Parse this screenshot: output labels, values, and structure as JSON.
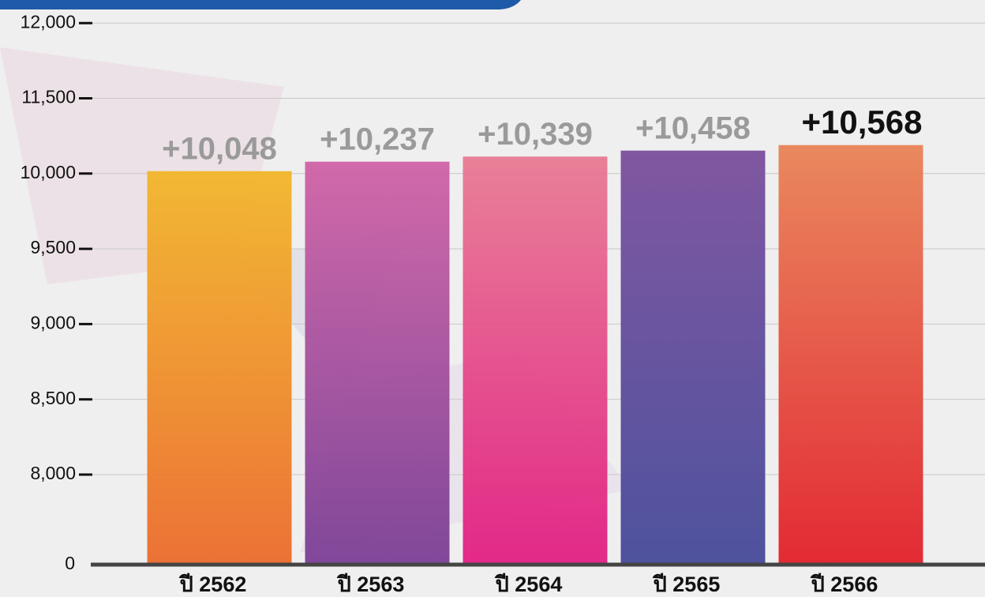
{
  "chart_data": {
    "type": "bar",
    "categories": [
      "ปี 2562",
      "ปี 2563",
      "ปี 2564",
      "ปี 2565",
      "ปี 2566"
    ],
    "values": [
      10048,
      10237,
      10339,
      10458,
      10568
    ],
    "value_labels": [
      "+10,048",
      "+10,237",
      "+10,339",
      "+10,458",
      "+10,568"
    ],
    "colors": [
      [
        "#f2b62a",
        "#ec6b2c"
      ],
      [
        "#d062a6",
        "#7a3f95"
      ],
      [
        "#e87a93",
        "#e21e82"
      ],
      [
        "#7a4f9c",
        "#464a9a"
      ],
      [
        "#e98357",
        "#e2202a"
      ]
    ],
    "ylim": [
      0,
      12000
    ],
    "yticks": [
      0,
      {
        "value": 8000,
        "label": "8,000"
      },
      {
        "value": 8500,
        "label": "8,500"
      },
      {
        "value": 9000,
        "label": "9,000"
      },
      {
        "value": 9500,
        "label": "9,500"
      },
      {
        "value": 10000,
        "label": "10,000"
      },
      {
        "value": 11500,
        "label": "11,500"
      },
      {
        "value": 12000,
        "label": "12,000"
      }
    ],
    "grid": true
  }
}
